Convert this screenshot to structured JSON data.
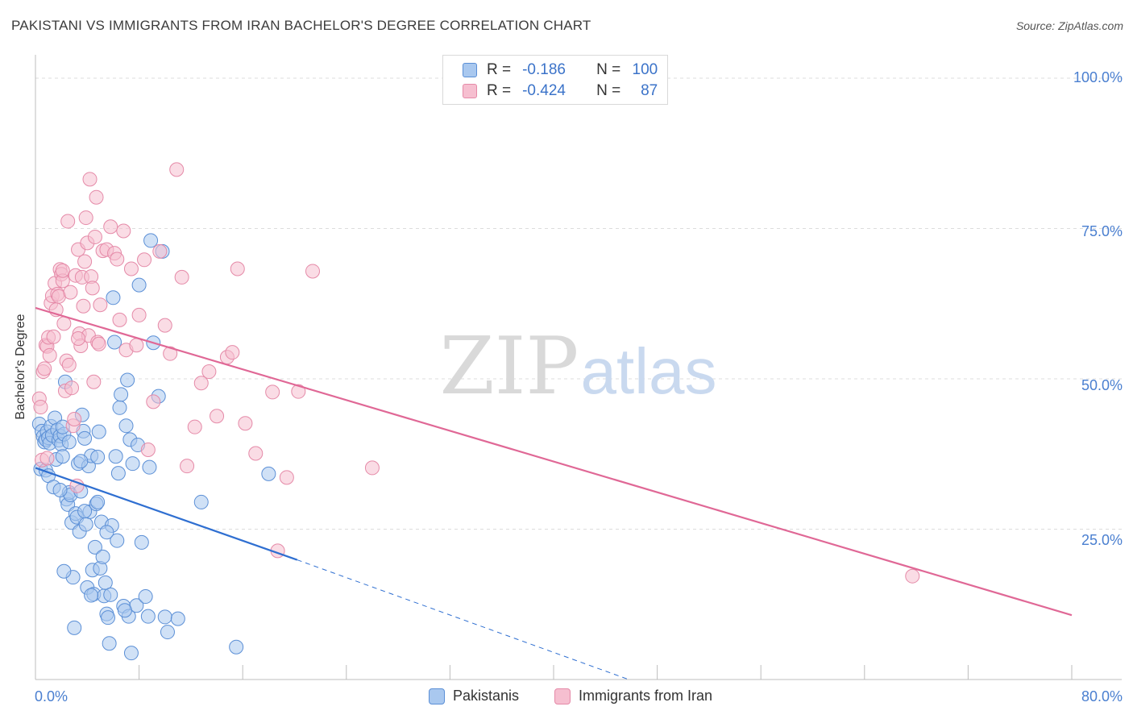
{
  "title": "PAKISTANI VS IMMIGRANTS FROM IRAN BACHELOR'S DEGREE CORRELATION CHART",
  "source": "Source: ZipAtlas.com",
  "watermark": {
    "zip": "ZIP",
    "atlas": "atlas"
  },
  "colors": {
    "blue_fill": "#a9c8ef",
    "blue_stroke": "#5b8fd6",
    "blue_line": "#2f6fd1",
    "pink_fill": "#f6bfd0",
    "pink_stroke": "#e58aa8",
    "pink_line": "#e06896",
    "grid": "#dcdcdc",
    "tick_text": "#4a7fd0"
  },
  "legend": {
    "rows": [
      {
        "r_label": "R =",
        "r_value": "-0.186",
        "n_label": "N =",
        "n_value": "100",
        "color": "blue"
      },
      {
        "r_label": "R =",
        "r_value": "-0.424",
        "n_label": "N =",
        "n_value": "87",
        "color": "pink"
      }
    ]
  },
  "bottom_legend": [
    "Pakistanis",
    "Immigrants from Iran"
  ],
  "chart_data": {
    "type": "scatter",
    "title": "PAKISTANI VS IMMIGRANTS FROM IRAN BACHELOR'S DEGREE CORRELATION CHART",
    "xlabel": "",
    "ylabel": "Bachelor's Degree",
    "xlim": [
      0,
      80
    ],
    "ylim": [
      0,
      100
    ],
    "x_tick_labels": [
      "0.0%",
      "80.0%"
    ],
    "y_tick_labels": [
      "100.0%",
      "75.0%",
      "50.0%",
      "25.0%"
    ],
    "y_tick_values": [
      100,
      75,
      50,
      25
    ],
    "grid": true,
    "series": [
      {
        "name": "Pakistanis",
        "R": -0.186,
        "N": 100,
        "trend": {
          "x0": 0,
          "y0": 35.2,
          "x1": 20.2,
          "y1": 19.9,
          "dashed_to_x": 45.8,
          "dashed_to_y": 0
        },
        "points": [
          [
            0.3,
            42.5
          ],
          [
            0.5,
            41.3
          ],
          [
            0.6,
            40.4
          ],
          [
            0.7,
            39.5
          ],
          [
            0.8,
            39.9
          ],
          [
            0.9,
            41.2
          ],
          [
            1.0,
            40.2
          ],
          [
            1.1,
            39.3
          ],
          [
            1.2,
            42.1
          ],
          [
            1.3,
            40.6
          ],
          [
            1.5,
            43.5
          ],
          [
            1.6,
            36.6
          ],
          [
            1.7,
            41.5
          ],
          [
            1.8,
            39.8
          ],
          [
            1.9,
            40.5
          ],
          [
            2.0,
            39.1
          ],
          [
            2.1,
            37.1
          ],
          [
            2.2,
            40.8
          ],
          [
            2.3,
            49.5
          ],
          [
            2.4,
            30.0
          ],
          [
            2.5,
            29.1
          ],
          [
            2.6,
            31.1
          ],
          [
            2.7,
            30.7
          ],
          [
            2.8,
            26.1
          ],
          [
            2.9,
            17.0
          ],
          [
            3.0,
            8.6
          ],
          [
            3.1,
            27.6
          ],
          [
            3.2,
            27.0
          ],
          [
            3.3,
            35.9
          ],
          [
            3.4,
            24.6
          ],
          [
            3.5,
            31.3
          ],
          [
            3.6,
            44.0
          ],
          [
            3.7,
            41.3
          ],
          [
            3.8,
            40.1
          ],
          [
            3.9,
            25.8
          ],
          [
            4.0,
            15.3
          ],
          [
            4.1,
            35.5
          ],
          [
            4.2,
            27.9
          ],
          [
            4.3,
            37.2
          ],
          [
            4.4,
            18.2
          ],
          [
            4.5,
            14.2
          ],
          [
            4.6,
            22.0
          ],
          [
            4.7,
            29.2
          ],
          [
            4.8,
            29.5
          ],
          [
            4.9,
            41.2
          ],
          [
            5.0,
            18.5
          ],
          [
            5.1,
            26.2
          ],
          [
            5.2,
            20.4
          ],
          [
            5.3,
            13.9
          ],
          [
            5.4,
            16.1
          ],
          [
            5.5,
            10.9
          ],
          [
            5.6,
            10.3
          ],
          [
            5.7,
            6.0
          ],
          [
            5.8,
            14.1
          ],
          [
            5.9,
            25.6
          ],
          [
            6.0,
            63.5
          ],
          [
            6.1,
            56.1
          ],
          [
            6.2,
            37.1
          ],
          [
            6.3,
            23.1
          ],
          [
            6.4,
            34.3
          ],
          [
            6.5,
            45.2
          ],
          [
            6.6,
            47.4
          ],
          [
            6.8,
            12.2
          ],
          [
            7.0,
            42.2
          ],
          [
            7.1,
            49.8
          ],
          [
            7.2,
            10.5
          ],
          [
            7.3,
            39.9
          ],
          [
            7.4,
            4.4
          ],
          [
            7.5,
            35.9
          ],
          [
            7.8,
            12.3
          ],
          [
            7.9,
            39.0
          ],
          [
            8.0,
            65.6
          ],
          [
            8.2,
            22.8
          ],
          [
            8.5,
            13.8
          ],
          [
            8.7,
            10.5
          ],
          [
            8.8,
            35.3
          ],
          [
            8.9,
            73.0
          ],
          [
            9.1,
            56.0
          ],
          [
            9.5,
            47.1
          ],
          [
            9.8,
            71.2
          ],
          [
            10.0,
            10.4
          ],
          [
            10.2,
            7.9
          ],
          [
            11.0,
            10.1
          ],
          [
            12.8,
            29.5
          ],
          [
            15.5,
            5.4
          ],
          [
            18.0,
            34.2
          ],
          [
            0.4,
            35.0
          ],
          [
            0.8,
            34.8
          ],
          [
            1.0,
            33.9
          ],
          [
            1.4,
            32.0
          ],
          [
            1.9,
            31.5
          ],
          [
            2.1,
            42.0
          ],
          [
            2.6,
            39.5
          ],
          [
            3.5,
            36.3
          ],
          [
            3.8,
            28.0
          ],
          [
            4.8,
            37.0
          ],
          [
            5.5,
            24.5
          ],
          [
            6.9,
            11.5
          ],
          [
            2.2,
            18.0
          ],
          [
            4.3,
            14.0
          ]
        ]
      },
      {
        "name": "Immigrants from Iran",
        "R": -0.424,
        "N": 87,
        "trend": {
          "x0": 0,
          "y0": 61.8,
          "x1": 80,
          "y1": 10.7
        },
        "points": [
          [
            0.3,
            46.7
          ],
          [
            0.4,
            45.3
          ],
          [
            0.5,
            36.5
          ],
          [
            0.6,
            51.2
          ],
          [
            0.7,
            51.7
          ],
          [
            0.8,
            55.6
          ],
          [
            0.9,
            55.4
          ],
          [
            1.0,
            56.9
          ],
          [
            1.1,
            53.9
          ],
          [
            1.2,
            62.6
          ],
          [
            1.3,
            63.8
          ],
          [
            1.4,
            57.0
          ],
          [
            1.5,
            65.9
          ],
          [
            1.6,
            61.5
          ],
          [
            1.7,
            64.1
          ],
          [
            1.8,
            63.7
          ],
          [
            1.9,
            68.2
          ],
          [
            2.0,
            67.4
          ],
          [
            2.1,
            66.3
          ],
          [
            2.2,
            59.2
          ],
          [
            2.3,
            48.0
          ],
          [
            2.4,
            53.0
          ],
          [
            2.5,
            76.2
          ],
          [
            2.6,
            52.3
          ],
          [
            2.7,
            64.4
          ],
          [
            2.8,
            48.5
          ],
          [
            2.9,
            42.2
          ],
          [
            3.0,
            43.3
          ],
          [
            3.1,
            67.2
          ],
          [
            3.2,
            32.2
          ],
          [
            3.3,
            71.5
          ],
          [
            3.4,
            57.5
          ],
          [
            3.5,
            55.5
          ],
          [
            3.6,
            66.9
          ],
          [
            3.7,
            62.1
          ],
          [
            3.8,
            69.5
          ],
          [
            3.9,
            76.8
          ],
          [
            4.0,
            72.6
          ],
          [
            4.1,
            57.2
          ],
          [
            4.2,
            83.2
          ],
          [
            4.3,
            67.0
          ],
          [
            4.4,
            65.1
          ],
          [
            4.5,
            49.5
          ],
          [
            4.6,
            73.6
          ],
          [
            4.7,
            80.2
          ],
          [
            4.8,
            56.1
          ],
          [
            4.9,
            55.8
          ],
          [
            5.2,
            71.3
          ],
          [
            5.5,
            71.5
          ],
          [
            5.8,
            75.3
          ],
          [
            6.1,
            70.9
          ],
          [
            6.5,
            59.8
          ],
          [
            6.8,
            74.6
          ],
          [
            7.0,
            54.8
          ],
          [
            7.4,
            68.3
          ],
          [
            7.8,
            55.6
          ],
          [
            8.0,
            60.6
          ],
          [
            8.4,
            69.8
          ],
          [
            8.7,
            38.2
          ],
          [
            9.1,
            46.2
          ],
          [
            9.6,
            71.2
          ],
          [
            10.0,
            58.9
          ],
          [
            10.4,
            54.2
          ],
          [
            10.9,
            84.8
          ],
          [
            11.3,
            66.9
          ],
          [
            11.7,
            35.5
          ],
          [
            12.3,
            42.0
          ],
          [
            12.8,
            49.3
          ],
          [
            13.4,
            51.2
          ],
          [
            14.0,
            43.8
          ],
          [
            14.8,
            53.6
          ],
          [
            15.2,
            54.4
          ],
          [
            15.6,
            68.3
          ],
          [
            16.2,
            42.6
          ],
          [
            17.0,
            37.6
          ],
          [
            18.3,
            47.8
          ],
          [
            19.4,
            33.6
          ],
          [
            20.3,
            47.9
          ],
          [
            21.4,
            67.9
          ],
          [
            26.0,
            35.2
          ],
          [
            18.7,
            21.4
          ],
          [
            67.7,
            17.2
          ],
          [
            0.9,
            36.8
          ],
          [
            2.1,
            68.0
          ],
          [
            3.3,
            56.7
          ],
          [
            5.0,
            62.3
          ],
          [
            6.3,
            69.9
          ]
        ]
      }
    ]
  }
}
